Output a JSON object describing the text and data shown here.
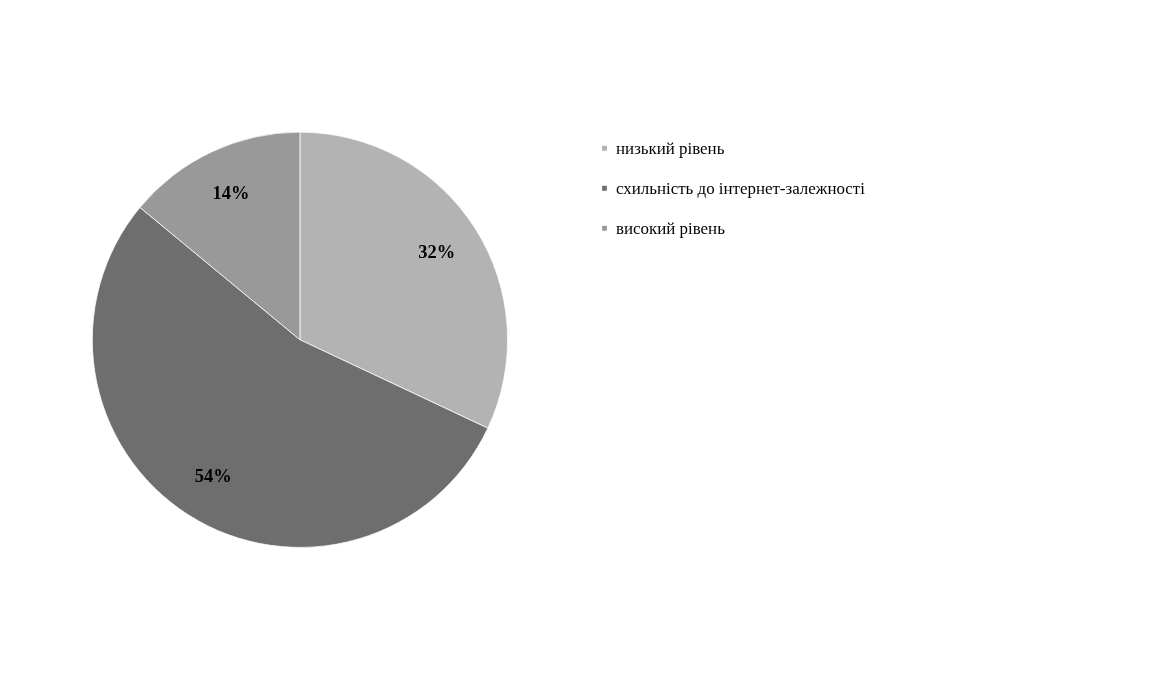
{
  "chart_data": {
    "type": "pie",
    "categories": [
      "низький рівень",
      "схильність до інтернет-залежності",
      "високий рівень"
    ],
    "values": [
      32,
      54,
      14
    ],
    "colors": [
      "#b3b3b3",
      "#6e6e6e",
      "#999999"
    ],
    "value_labels": [
      "32%",
      "54%",
      "14%"
    ],
    "legend": "top right"
  }
}
